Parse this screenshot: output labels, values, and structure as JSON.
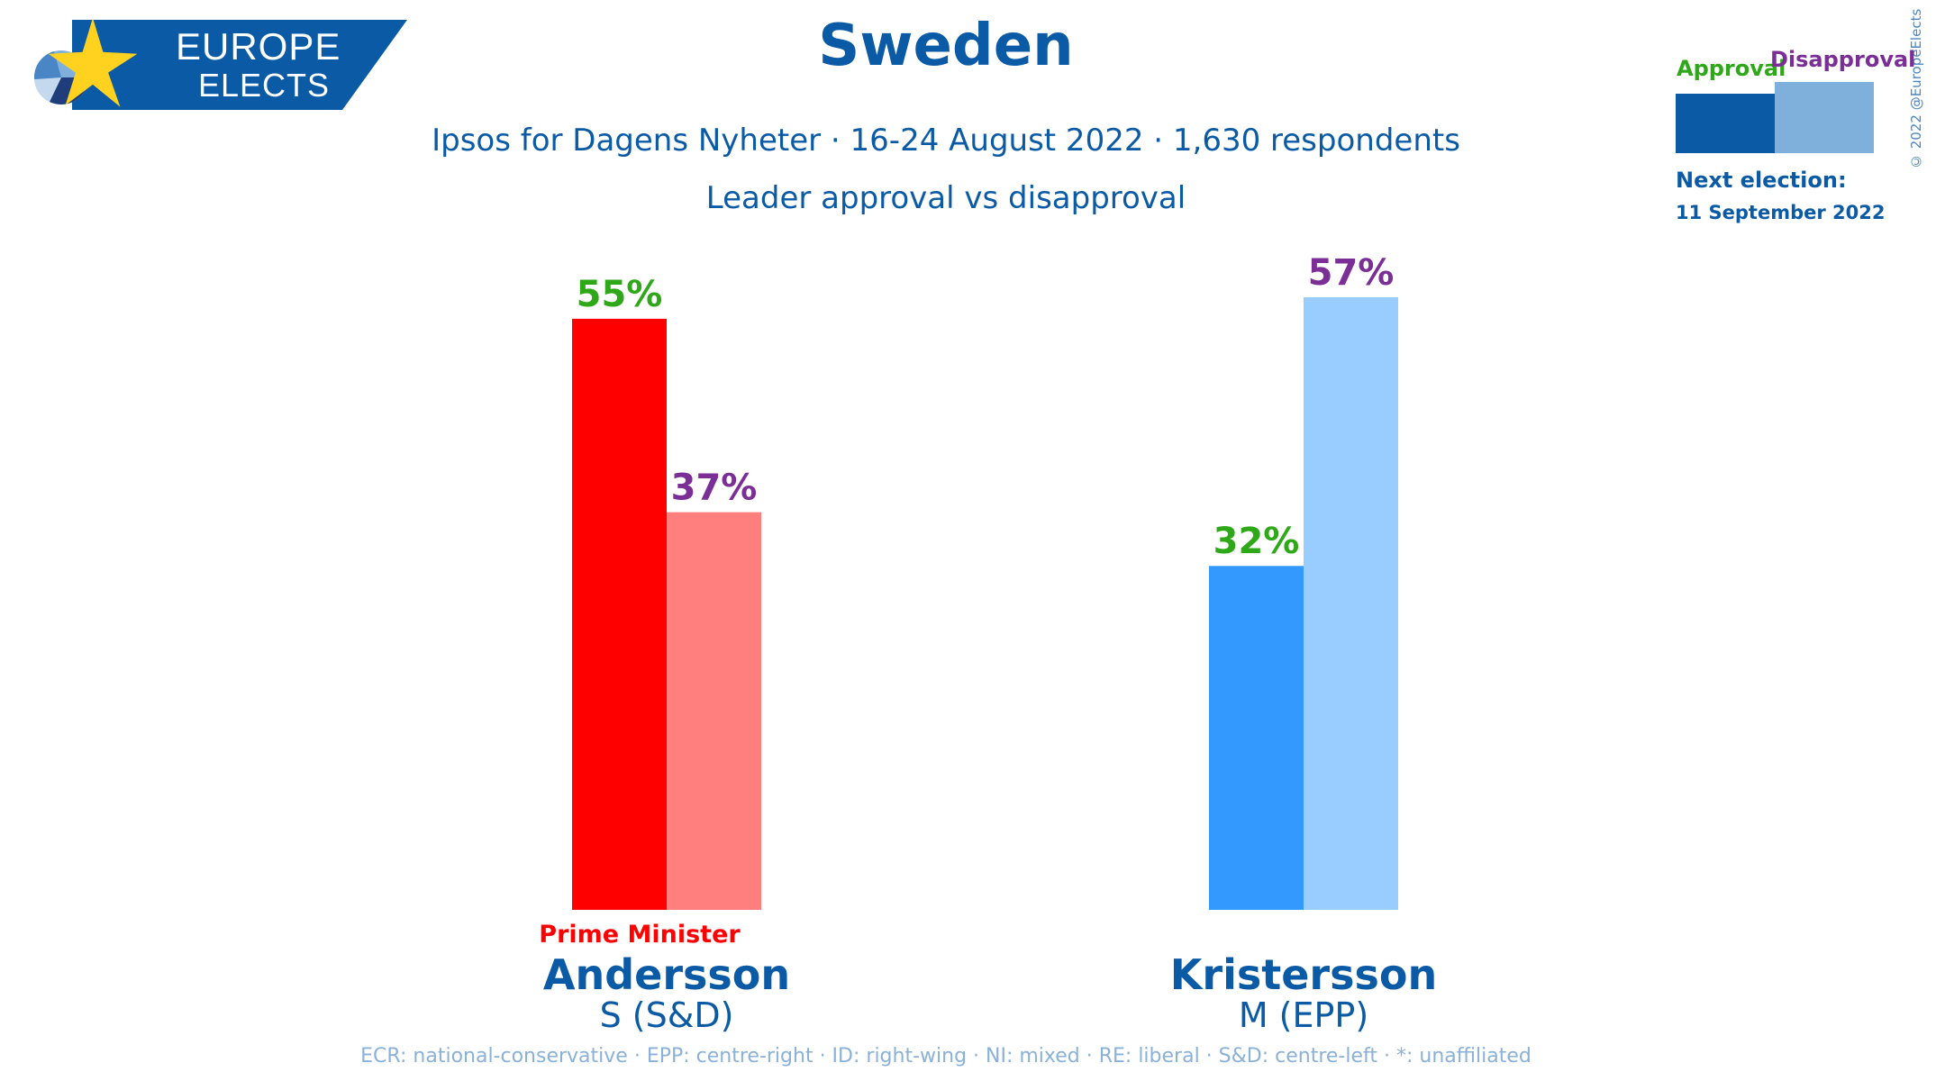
{
  "brand": {
    "line1": "EUROPE",
    "line2": "ELECTS"
  },
  "title": "Sweden",
  "subtitle": "Ipsos for Dagens Nyheter · 16-24 August 2022 · 1,630 respondents",
  "subtitle2": "Leader approval vs disapproval",
  "copyright": "© 2022 @EuropeElects",
  "legend": {
    "approval": "Approval",
    "disapproval": "Disapproval"
  },
  "next_election": {
    "label": "Next election:",
    "date": "11 September 2022"
  },
  "footer": "ECR: national-conservative · EPP: centre-right · ID: right-wing · NI: mixed · RE: liberal · S&D: centre-left · *: unaffiliated",
  "colors": {
    "title": "#0b5aa6",
    "approval_label": "#2ea818",
    "disapproval_label": "#7a2e96",
    "legend_approval": "#0b5aa6",
    "legend_disapproval": "#7fb0db"
  },
  "chart_data": {
    "type": "bar",
    "series_names": [
      "Approval",
      "Disapproval"
    ],
    "categories": [
      "Andersson",
      "Kristersson"
    ],
    "leaders": [
      {
        "name": "Andersson",
        "party": "S (S&D)",
        "note": "Prime Minister",
        "note_color": "#ff0000",
        "approval": 55,
        "disapproval": 37,
        "approval_color": "#ff0000",
        "disapproval_color": "#ff7f7f"
      },
      {
        "name": "Kristersson",
        "party": "M (EPP)",
        "note": "",
        "note_color": "",
        "approval": 32,
        "disapproval": 57,
        "approval_color": "#3399ff",
        "disapproval_color": "#99ccff"
      }
    ],
    "value_suffix": "%",
    "ylim": [
      0,
      57
    ],
    "grid": false
  }
}
